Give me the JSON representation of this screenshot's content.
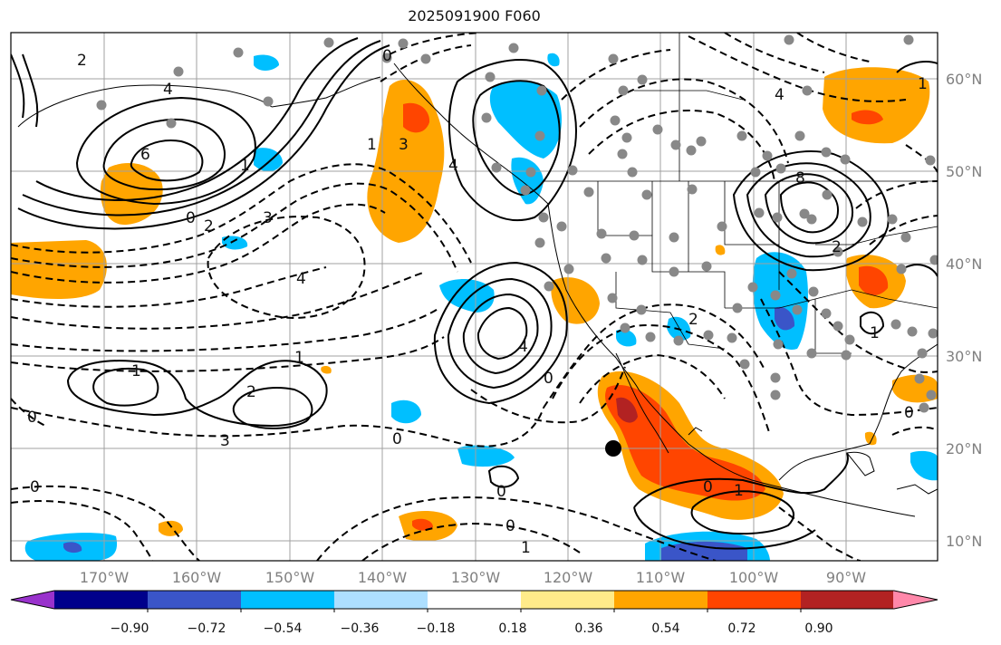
{
  "title": "2025091900 F060",
  "lat_labels": [
    "60°N",
    "50°N",
    "40°N",
    "30°N",
    "20°N",
    "10°N"
  ],
  "lon_labels": [
    "170°W",
    "160°W",
    "150°W",
    "140°W",
    "130°W",
    "120°W",
    "110°W",
    "100°W",
    "90°W"
  ],
  "colorbar": {
    "colors": [
      "#9932CC",
      "#00008B",
      "#3A55C8",
      "#00BFFF",
      "#ADDFFF",
      "#FFFFFF",
      "#FFEB8A",
      "#FFA500",
      "#FF4500",
      "#B22222",
      "#FF88AA"
    ],
    "tick_labels": [
      "−0.90",
      "−0.72",
      "−0.54",
      "−0.36",
      "−0.18",
      "0.18",
      "0.36",
      "0.54",
      "0.72",
      "0.90"
    ]
  },
  "contour_labels": [
    "2",
    "4",
    "6",
    "1",
    "0",
    "3",
    "4",
    "3",
    "1",
    "0",
    "1",
    "2",
    "4",
    "0",
    "0",
    "1",
    "0",
    "2",
    "3",
    "4",
    "1",
    "1",
    "0",
    "0",
    "2",
    "8",
    "1",
    "0",
    "0",
    "2",
    "1",
    "0",
    "4"
  ],
  "colors": {
    "contour": "#000000",
    "grid": "#999999",
    "station": "#888888"
  }
}
